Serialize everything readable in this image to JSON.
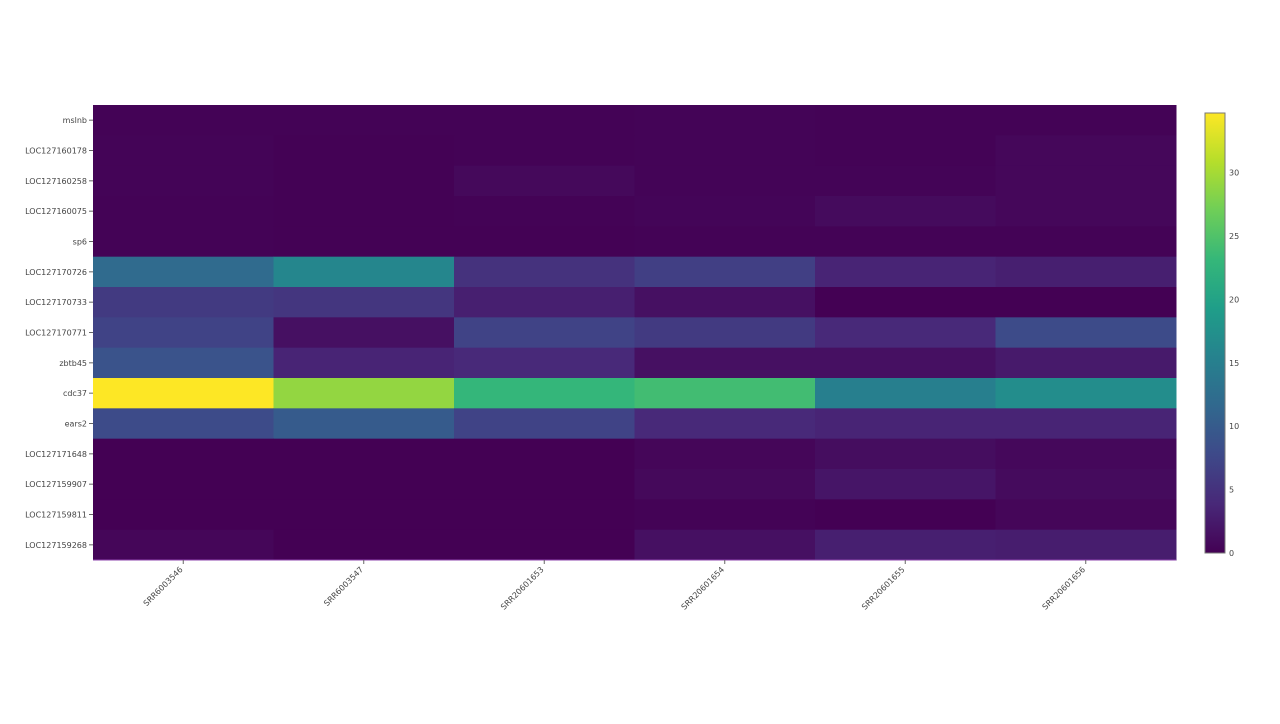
{
  "chart_data": {
    "type": "heatmap",
    "colorscale": "viridis",
    "zlim": [
      0,
      34.7
    ],
    "colorbar_ticks": [
      0,
      5,
      10,
      15,
      20,
      25,
      30
    ],
    "x": [
      "SRR6003546",
      "SRR6003547",
      "SRR20601653",
      "SRR20601654",
      "SRR20601655",
      "SRR20601656"
    ],
    "y": [
      "mslnb",
      "LOC127160178",
      "LOC127160258",
      "LOC127160075",
      "sp6",
      "LOC127170726",
      "LOC127170733",
      "LOC127170771",
      "zbtb45",
      "cdc37",
      "ears2",
      "LOC127171648",
      "LOC127159907",
      "LOC127159811",
      "LOC127159268"
    ],
    "z": [
      [
        0.2,
        0.2,
        0.2,
        0.3,
        0.2,
        0.2
      ],
      [
        0.3,
        0.1,
        0.2,
        0.3,
        0.2,
        0.6
      ],
      [
        0.3,
        0.1,
        0.8,
        0.3,
        0.3,
        0.6
      ],
      [
        0.2,
        0.1,
        0.2,
        0.4,
        1.0,
        0.6
      ],
      [
        0.2,
        0.1,
        0.1,
        0.2,
        0.2,
        0.2
      ],
      [
        12,
        16,
        5,
        6.5,
        3.5,
        3
      ],
      [
        6,
        5.5,
        3,
        1.5,
        0,
        0
      ],
      [
        7,
        1.5,
        7,
        6,
        4,
        8
      ],
      [
        9,
        3.5,
        4,
        1.5,
        1.5,
        2.5
      ],
      [
        34.7,
        29,
        23,
        24,
        15,
        17
      ],
      [
        8,
        10,
        7,
        4,
        3.5,
        3.5
      ],
      [
        0,
        0,
        0,
        0.5,
        1.2,
        0.7
      ],
      [
        0,
        0,
        0,
        0.8,
        2,
        1
      ],
      [
        0,
        0,
        0,
        0.2,
        0,
        0.5
      ],
      [
        0.5,
        0,
        0,
        1.5,
        3,
        2.8
      ]
    ]
  }
}
